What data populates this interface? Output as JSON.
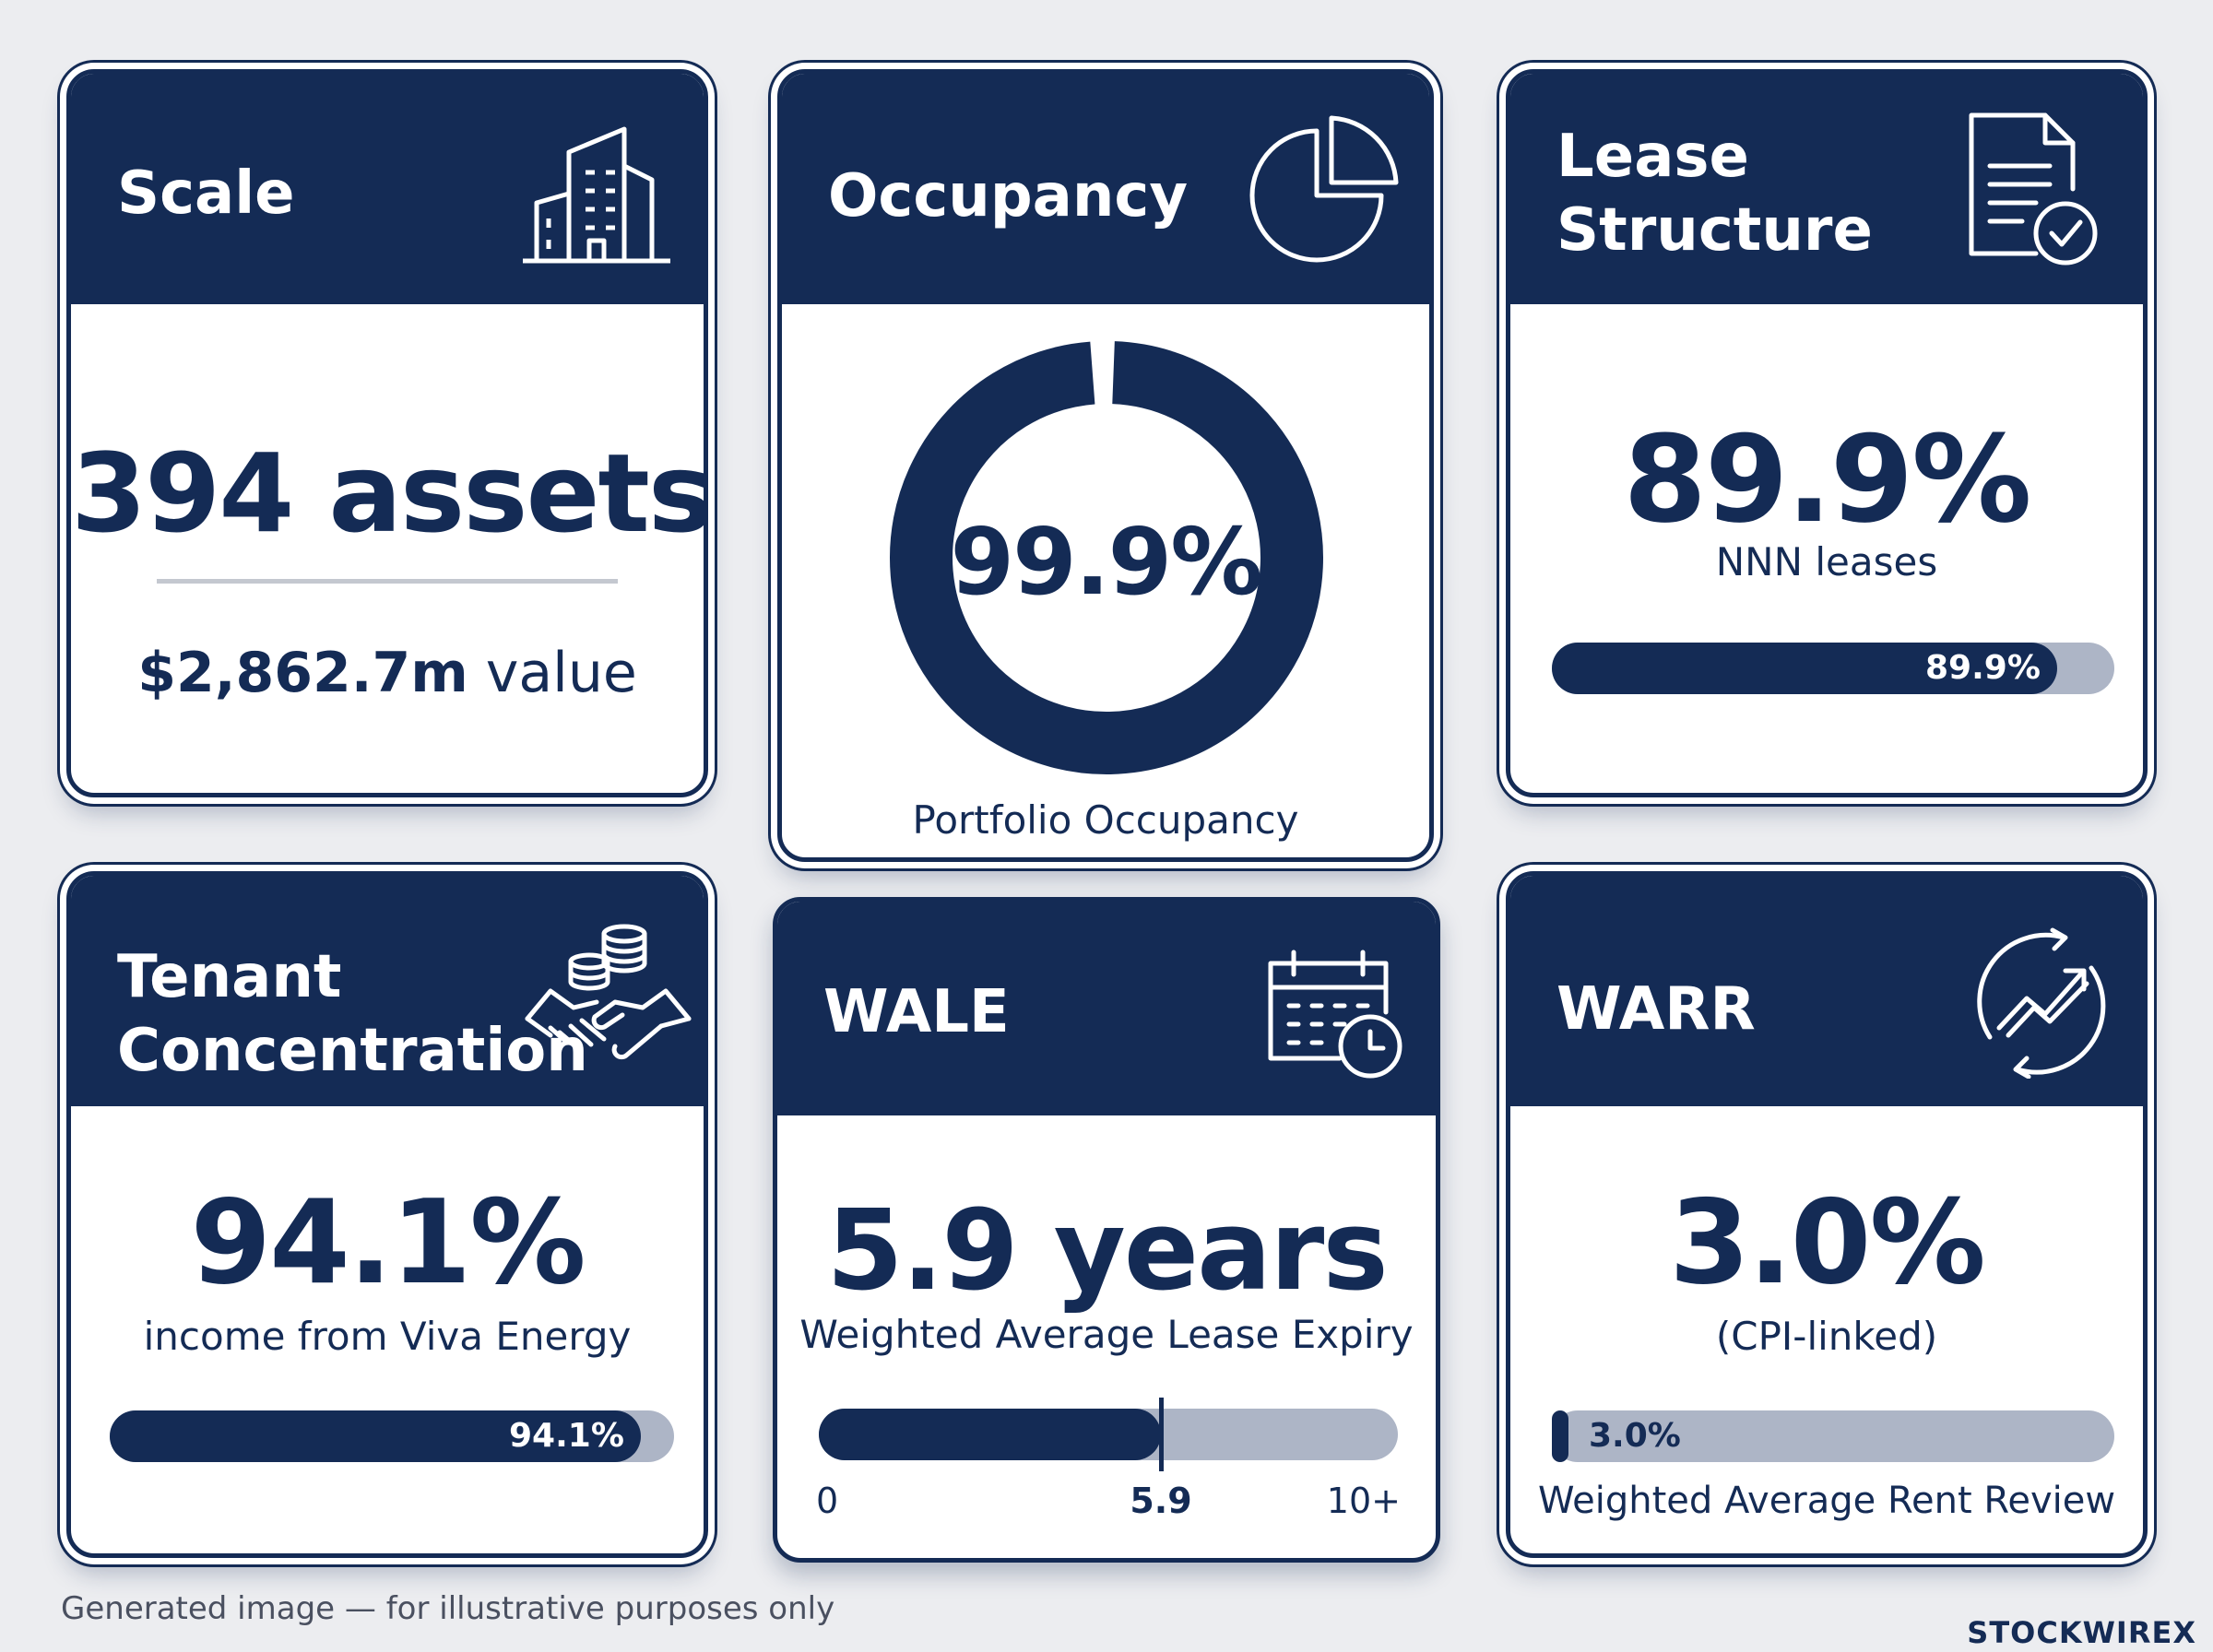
{
  "scale": {
    "title": "Scale",
    "icon": "building-icon",
    "value": "394 assets",
    "sub_value": "$2,862.7m",
    "sub_unit": "value"
  },
  "occupancy": {
    "title": "Occupancy",
    "icon": "pie-chart-icon",
    "value": "99.9%",
    "percent": 99.9,
    "caption": "Portfolio Occupancy"
  },
  "lease": {
    "title_line1": "Lease",
    "title_line2": "Structure",
    "icon": "document-check-icon",
    "value": "89.9%",
    "caption": "NNN leases",
    "bar_percent": 89.9,
    "bar_label": "89.9%"
  },
  "tenant": {
    "title_line1": "Tenant",
    "title_line2": "Concentration",
    "icon": "handshake-coins-icon",
    "value": "94.1%",
    "caption": "income from Viva Energy",
    "bar_percent": 94.1,
    "bar_label": "94.1%"
  },
  "wale": {
    "title": "WALE",
    "icon": "calendar-clock-icon",
    "value": "5.9 years",
    "caption": "Weighted Average Lease Expiry",
    "bar_value": 5.9,
    "bar_max": 10,
    "axis_min": "0",
    "axis_marker": "5.9",
    "axis_max": "10+"
  },
  "warr": {
    "title": "WARR",
    "icon": "growth-cycle-icon",
    "value": "3.0%",
    "caption": "(CPI-linked)",
    "bar_percent": 3.0,
    "bar_label": "3.0%",
    "bar_caption": "Weighted Average Rent Review"
  },
  "footer": {
    "note": "Generated image — for illustrative purposes only",
    "brand": "STOCKWIRE",
    "brand_mark": "X"
  },
  "colors": {
    "navy": "#142b55",
    "track": "#adb5c6",
    "background": "#ecedf0"
  }
}
